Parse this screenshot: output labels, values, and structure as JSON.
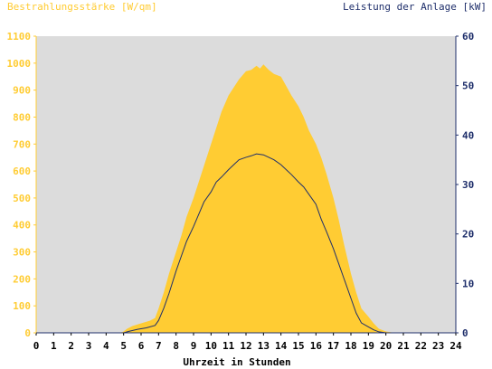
{
  "chart_data": {
    "type": "area",
    "left_axis_title": "Bestrahlungsstärke [W/qm]",
    "right_axis_title": "Leistung der Anlage [kW]",
    "xlabel": "Uhrzeit in Stunden",
    "xlim": [
      0,
      24
    ],
    "x_ticks": [
      "0",
      "1",
      "2",
      "3",
      "4",
      "5",
      "6",
      "7",
      "8",
      "9",
      "10",
      "11",
      "12",
      "13",
      "14",
      "15",
      "16",
      "17",
      "18",
      "19",
      "20",
      "21",
      "22",
      "23",
      "24"
    ],
    "y_left_lim": [
      0,
      1100
    ],
    "y_left_ticks": [
      "0",
      "100",
      "200",
      "300",
      "400",
      "500",
      "600",
      "700",
      "800",
      "900",
      "1000",
      "1100"
    ],
    "y_right_lim": [
      0,
      60
    ],
    "y_right_ticks": [
      "0",
      "10",
      "20",
      "30",
      "40",
      "50",
      "60"
    ],
    "grid": false,
    "colors": {
      "plot_background": "#dcdcdc",
      "irradiance_fill": "#ffcc33",
      "power_line": "#1f2f6b",
      "left_axis_text": "#ffcc33",
      "right_axis_text": "#1f2f6b",
      "bottom_axis_text": "#000000"
    },
    "series": [
      {
        "axis": "left",
        "style": "area",
        "x": [
          0,
          4.8,
          5.0,
          5.2,
          5.5,
          6.0,
          6.5,
          6.8,
          7.0,
          7.3,
          7.6,
          8.0,
          8.3,
          8.6,
          9.0,
          9.3,
          9.6,
          10.0,
          10.3,
          10.6,
          11.0,
          11.3,
          11.6,
          12.0,
          12.3,
          12.6,
          12.8,
          13.0,
          13.3,
          13.6,
          14.0,
          14.3,
          14.6,
          15.0,
          15.3,
          15.6,
          16.0,
          16.3,
          16.6,
          17.0,
          17.3,
          17.6,
          18.0,
          18.3,
          18.6,
          19.0,
          19.3,
          19.6,
          20.0,
          20.3,
          20.6,
          24
        ],
        "values": [
          0,
          0,
          5,
          15,
          25,
          35,
          45,
          55,
          90,
          150,
          220,
          300,
          360,
          430,
          500,
          560,
          620,
          700,
          760,
          820,
          880,
          910,
          940,
          970,
          975,
          990,
          980,
          995,
          975,
          960,
          950,
          915,
          880,
          840,
          800,
          750,
          700,
          650,
          590,
          500,
          420,
          330,
          220,
          150,
          90,
          60,
          35,
          15,
          5,
          2,
          0,
          0
        ]
      },
      {
        "axis": "right",
        "style": "line",
        "x": [
          0,
          5.0,
          5.3,
          5.8,
          6.3,
          6.8,
          7.0,
          7.3,
          7.6,
          8.0,
          8.3,
          8.6,
          9.0,
          9.3,
          9.6,
          10.0,
          10.3,
          10.6,
          11.0,
          11.3,
          11.6,
          12.0,
          12.3,
          12.6,
          13.0,
          13.3,
          13.6,
          14.0,
          14.3,
          14.6,
          15.0,
          15.3,
          15.6,
          16.0,
          16.3,
          16.6,
          17.0,
          17.3,
          17.6,
          18.0,
          18.3,
          18.6,
          19.0,
          19.3,
          19.6,
          20.0,
          24
        ],
        "values": [
          0,
          0,
          0.3,
          0.7,
          1.0,
          1.5,
          2.5,
          5.0,
          8.0,
          12.5,
          15.5,
          18.5,
          21.5,
          24.0,
          26.5,
          28.5,
          30.5,
          31.5,
          33.0,
          34.0,
          35.0,
          35.5,
          35.8,
          36.2,
          36.0,
          35.5,
          35.0,
          34.0,
          33.0,
          32.0,
          30.5,
          29.5,
          28.0,
          26.0,
          23.0,
          20.5,
          17.0,
          14.0,
          11.0,
          7.0,
          4.0,
          2.0,
          1.2,
          0.6,
          0.2,
          0,
          0
        ]
      }
    ]
  }
}
